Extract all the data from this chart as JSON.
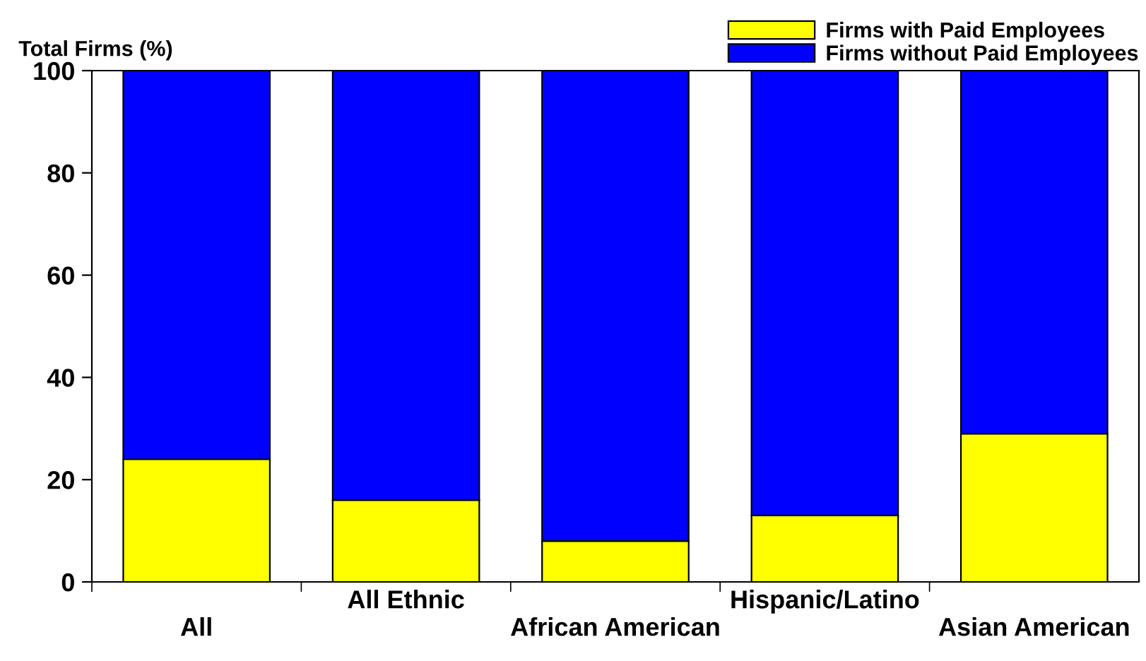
{
  "chart_data": {
    "type": "bar",
    "stacked": true,
    "ylabel": "Total Firms (%)",
    "categories": [
      "All",
      "All Ethnic",
      "African American",
      "Hispanic/Latino",
      "Asian American"
    ],
    "series": [
      {
        "name": "Firms with Paid Employees",
        "color": "#ffff00",
        "values": [
          24,
          16,
          8,
          13,
          29
        ]
      },
      {
        "name": "Firms without Paid Employees",
        "color": "#0000ff",
        "values": [
          76,
          84,
          92,
          87,
          71
        ]
      }
    ],
    "ylim": [
      0,
      100
    ],
    "yticks": [
      0,
      20,
      40,
      60,
      80,
      100
    ],
    "grid": false,
    "legend": "top right"
  }
}
